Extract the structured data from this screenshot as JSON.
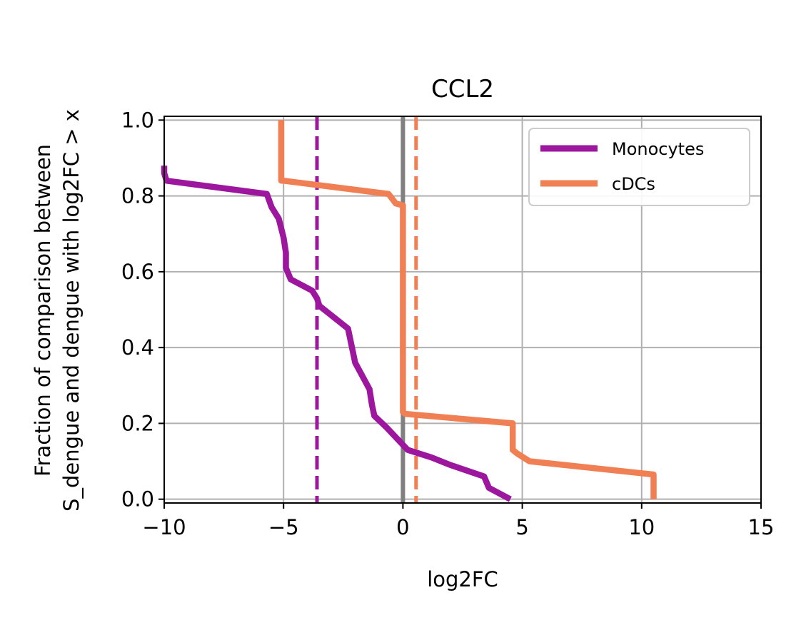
{
  "chart_data": {
    "type": "line",
    "title": "CCL2",
    "xlabel": "log2FC",
    "ylabel_lines": [
      "Fraction of comparison between",
      "S_dengue and dengue with log2FC > x"
    ],
    "xlim": [
      -10,
      15
    ],
    "ylim": [
      -0.01,
      1.01
    ],
    "xticks": [
      -10,
      -5,
      0,
      5,
      10,
      15
    ],
    "xtick_labels": [
      "−10",
      "−5",
      "0",
      "5",
      "10",
      "15"
    ],
    "yticks": [
      0.0,
      0.2,
      0.4,
      0.6,
      0.8,
      1.0
    ],
    "ytick_labels": [
      "0.0",
      "0.2",
      "0.4",
      "0.6",
      "0.8",
      "1.0"
    ],
    "grid": true,
    "legend_position": "top-right",
    "zero_line": {
      "x": 0,
      "color": "#808080"
    },
    "series": [
      {
        "name": "Monocytes",
        "color": "#9c179e",
        "x": [
          -10,
          -10,
          -9.9,
          -5.7,
          -5.5,
          -5.2,
          -5.0,
          -4.9,
          -4.9,
          -4.7,
          -3.8,
          -3.6,
          -3.5,
          -2.9,
          -2.3,
          -2.0,
          -1.4,
          -1.3,
          -1.2,
          -0.7,
          0.2,
          1.2,
          2.0,
          3.4,
          3.6,
          4.5
        ],
        "y": [
          0.88,
          0.86,
          0.84,
          0.805,
          0.77,
          0.74,
          0.69,
          0.65,
          0.61,
          0.58,
          0.55,
          0.53,
          0.51,
          0.48,
          0.45,
          0.36,
          0.29,
          0.25,
          0.22,
          0.19,
          0.13,
          0.11,
          0.09,
          0.06,
          0.03,
          0.0
        ]
      },
      {
        "name": "cDCs",
        "color": "#f07f54",
        "x": [
          -5.1,
          -5.1,
          -5.0,
          -0.6,
          -0.3,
          0.0,
          0.0,
          0.1,
          4.6,
          4.6,
          4.8,
          5.3,
          10.5,
          10.5
        ],
        "y": [
          1.0,
          0.84,
          0.84,
          0.805,
          0.78,
          0.775,
          0.23,
          0.225,
          0.2,
          0.13,
          0.12,
          0.1,
          0.065,
          0.0
        ]
      }
    ],
    "mean_lines": [
      {
        "series": "Monocytes",
        "x": -3.6,
        "color": "#9c179e",
        "style": "dashed"
      },
      {
        "series": "cDCs",
        "x": 0.55,
        "color": "#f07f54",
        "style": "dashed"
      }
    ]
  }
}
